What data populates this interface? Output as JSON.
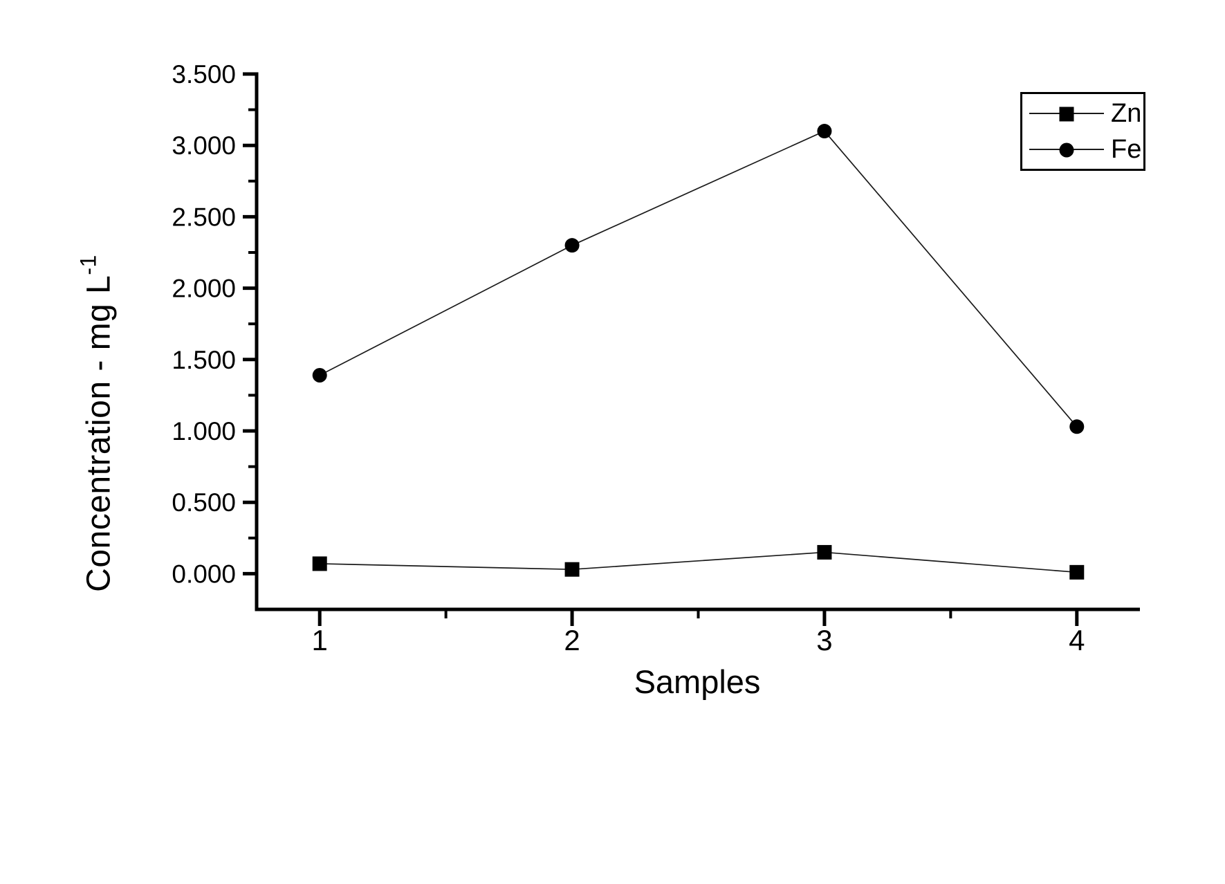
{
  "chart_data": {
    "type": "line",
    "title": "",
    "xlabel": "Samples",
    "ylabel": "Concentration - mg L⁻¹",
    "ylabel_main": "Concentration - mg L",
    "ylabel_superscript": "-1",
    "x": [
      1,
      2,
      3,
      4
    ],
    "series": [
      {
        "name": "Zn",
        "marker": "square",
        "values": [
          0.07,
          0.03,
          0.15,
          0.01
        ]
      },
      {
        "name": "Fe",
        "marker": "circle",
        "values": [
          1.39,
          2.3,
          3.1,
          1.03
        ]
      }
    ],
    "xlim": [
      0.75,
      4.25
    ],
    "ylim": [
      -0.25,
      3.5
    ],
    "x_tick_labels": [
      "1",
      "2",
      "3",
      "4"
    ],
    "y_tick_labels": [
      "0.000",
      "0.500",
      "1.000",
      "1.500",
      "2.000",
      "2.500",
      "3.000",
      "3.500"
    ],
    "minor_ticks": "midpoints between major ticks",
    "grid": false,
    "legend_position": "top-right",
    "colors": {
      "axis": "#000000",
      "line": "#1a1a1a",
      "marker": "#000000",
      "background": "#ffffff"
    }
  }
}
